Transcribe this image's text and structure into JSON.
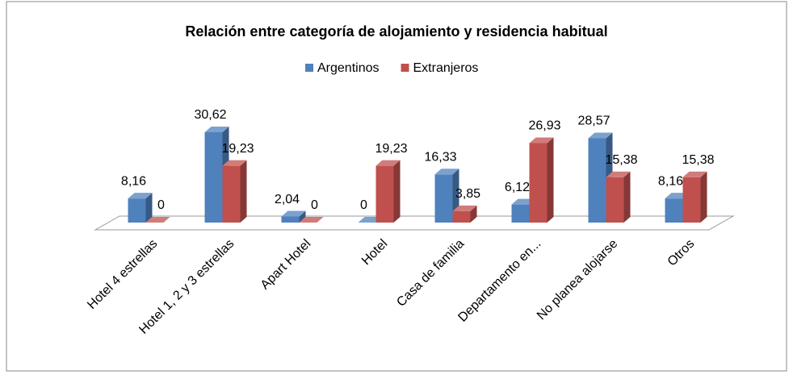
{
  "chart_data": {
    "type": "bar3d",
    "title": "Relación entre categoría de alojamiento y residencia habitual",
    "categories": [
      "Hotel 4 estrellas",
      "Hotel 1, 2 y 3 estrellas",
      "Apart Hotel",
      "Hotel",
      "Casa de familia",
      "Departamento en...",
      "No planea alojarse",
      "Otros"
    ],
    "series": [
      {
        "name": "Argentinos",
        "color": "#4f81bd",
        "values": [
          8.16,
          30.62,
          2.04,
          0,
          16.33,
          6.12,
          28.57,
          8.16
        ],
        "value_labels": [
          "8,16",
          "30,62",
          "2,04",
          "0",
          "16,33",
          "6,12",
          "28,57",
          "8,16"
        ]
      },
      {
        "name": "Extranjeros",
        "color": "#c0504d",
        "values": [
          0,
          19.23,
          0,
          19.23,
          3.85,
          26.93,
          15.38,
          15.38
        ],
        "value_labels": [
          "0",
          "19,23",
          "0",
          "19,23",
          "3,85",
          "26,93",
          "15,38",
          "15,38"
        ]
      }
    ],
    "ylim": [
      0,
      35
    ],
    "legend": "top"
  }
}
